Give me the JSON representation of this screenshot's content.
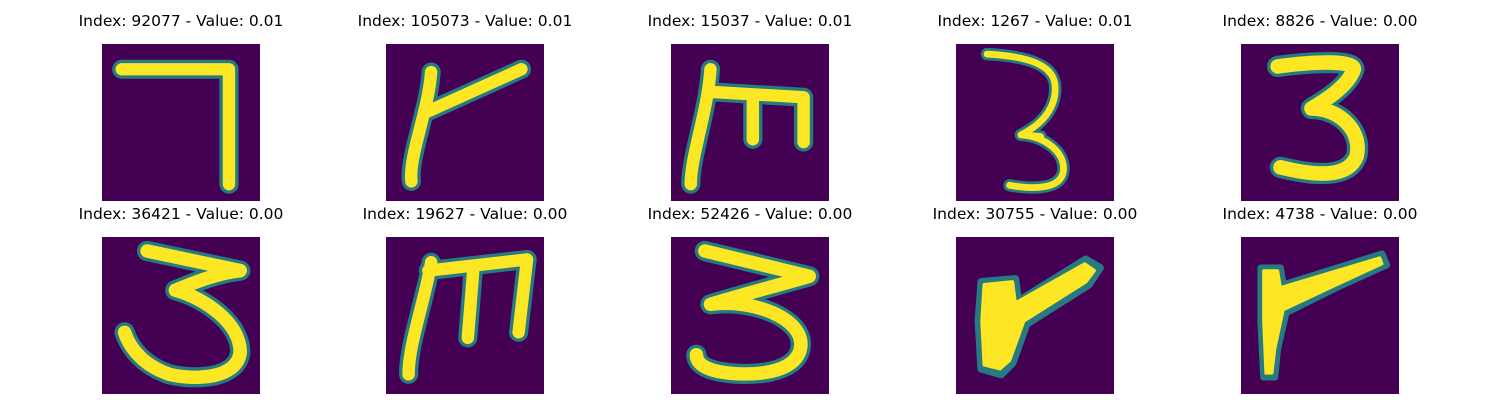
{
  "colors": {
    "background": "#440154",
    "stroke": "#fde725",
    "stroke_edge": "#21918c"
  },
  "panels": [
    {
      "title": "Index: 92077 - Value: 0.01",
      "glyph": "seven"
    },
    {
      "title": "Index: 105073 - Value: 0.01",
      "glyph": "r-shape"
    },
    {
      "title": "Index: 15037 - Value: 0.01",
      "glyph": "m-rotated-three"
    },
    {
      "title": "Index: 1267 - Value: 0.01",
      "glyph": "three-thin"
    },
    {
      "title": "Index: 8826 - Value: 0.00",
      "glyph": "three"
    },
    {
      "title": "Index: 36421 - Value: 0.00",
      "glyph": "three"
    },
    {
      "title": "Index: 19627 - Value: 0.00",
      "glyph": "m-rotated-three"
    },
    {
      "title": "Index: 52426 - Value: 0.00",
      "glyph": "three"
    },
    {
      "title": "Index: 30755 - Value: 0.00",
      "glyph": "r-shape-bold"
    },
    {
      "title": "Index: 4738 - Value: 0.00",
      "glyph": "r-shape"
    }
  ]
}
